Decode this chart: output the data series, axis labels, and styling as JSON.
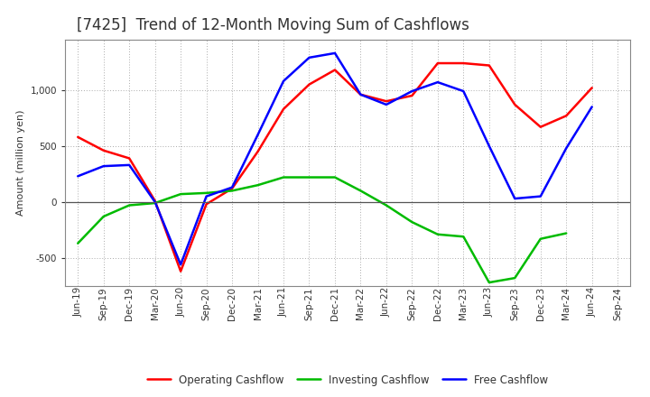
{
  "title": "[7425]  Trend of 12-Month Moving Sum of Cashflows",
  "ylabel": "Amount (million yen)",
  "x_labels": [
    "Jun-19",
    "Sep-19",
    "Dec-19",
    "Mar-20",
    "Jun-20",
    "Sep-20",
    "Dec-20",
    "Mar-21",
    "Jun-21",
    "Sep-21",
    "Dec-21",
    "Mar-22",
    "Jun-22",
    "Sep-22",
    "Dec-22",
    "Mar-23",
    "Jun-23",
    "Sep-23",
    "Dec-23",
    "Mar-24",
    "Jun-24",
    "Sep-24"
  ],
  "operating": [
    580,
    460,
    390,
    10,
    -620,
    -20,
    120,
    450,
    830,
    1050,
    1180,
    960,
    900,
    950,
    1240,
    1240,
    1220,
    870,
    670,
    770,
    1020,
    null
  ],
  "investing": [
    -370,
    -130,
    -30,
    -10,
    70,
    80,
    100,
    150,
    220,
    220,
    220,
    100,
    -30,
    -180,
    -290,
    -310,
    -720,
    -680,
    -330,
    -280,
    null,
    null
  ],
  "free": [
    230,
    320,
    330,
    0,
    -560,
    50,
    130,
    600,
    1080,
    1290,
    1330,
    960,
    870,
    990,
    1070,
    990,
    500,
    30,
    50,
    480,
    850,
    null
  ],
  "operating_color": "#ff0000",
  "investing_color": "#00bb00",
  "free_color": "#0000ff",
  "ylim": [
    -750,
    1450
  ],
  "yticks": [
    -500,
    0,
    500,
    1000
  ],
  "background_color": "#ffffff",
  "grid_color": "#aaaaaa",
  "linewidth": 1.8,
  "title_fontsize": 12,
  "title_color": "#333333",
  "label_fontsize": 8,
  "tick_fontsize": 7.5,
  "legend_fontsize": 8.5
}
